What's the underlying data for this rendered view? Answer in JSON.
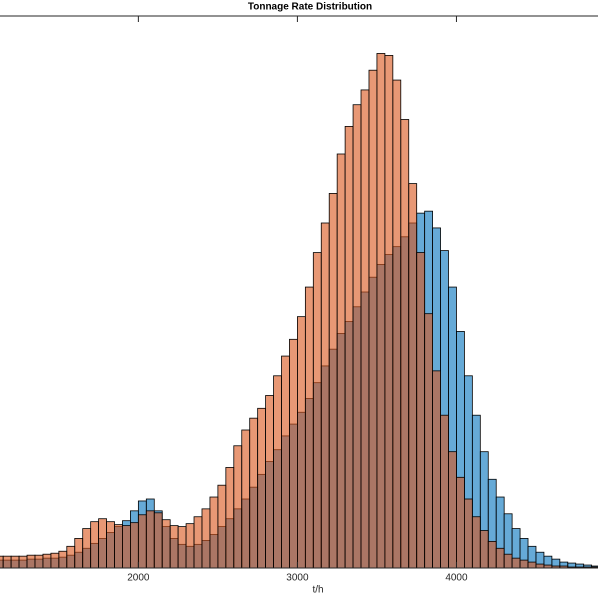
{
  "chart_data": {
    "type": "histogram",
    "title": "Tonnage Rate Distribution",
    "x_label": "t/h",
    "bins": [
      1100,
      1150,
      1200,
      1250,
      1300,
      1350,
      1400,
      1450,
      1500,
      1550,
      1600,
      1650,
      1700,
      1750,
      1800,
      1850,
      1900,
      1950,
      2000,
      2050,
      2100,
      2150,
      2200,
      2250,
      2300,
      2350,
      2400,
      2450,
      2500,
      2550,
      2600,
      2650,
      2700,
      2750,
      2800,
      2850,
      2900,
      2950,
      3000,
      3050,
      3100,
      3150,
      3200,
      3250,
      3300,
      3350,
      3400,
      3450,
      3500,
      3550,
      3600,
      3650,
      3700,
      3750,
      3800,
      3850,
      3900,
      3950,
      4000,
      4050,
      4100,
      4150,
      4200,
      4250,
      4300,
      4350,
      4400,
      4450,
      4500,
      4550,
      4600,
      4650,
      4700,
      4750,
      4800,
      4850,
      4900
    ],
    "series": [
      {
        "color": "#0072bd",
        "values": [
          8,
          8,
          8,
          8,
          9,
          9,
          10,
          10,
          11,
          13,
          16,
          20,
          25,
          30,
          36,
          42,
          48,
          58,
          68,
          70,
          58,
          42,
          30,
          24,
          22,
          24,
          28,
          34,
          42,
          50,
          60,
          70,
          82,
          95,
          108,
          120,
          134,
          146,
          158,
          172,
          188,
          205,
          222,
          238,
          250,
          265,
          280,
          295,
          308,
          318,
          326,
          336,
          350,
          360,
          362,
          345,
          322,
          285,
          240,
          195,
          155,
          118,
          90,
          72,
          55,
          40,
          30,
          22,
          16,
          12,
          9,
          6,
          5,
          4,
          3,
          2
        ]
      },
      {
        "color": "#d95319",
        "values": [
          12,
          12,
          12,
          12,
          13,
          13,
          14,
          15,
          17,
          22,
          30,
          40,
          47,
          50,
          47,
          44,
          43,
          46,
          54,
          58,
          56,
          49,
          43,
          42,
          45,
          52,
          60,
          72,
          84,
          102,
          124,
          140,
          152,
          162,
          175,
          195,
          215,
          232,
          255,
          285,
          320,
          350,
          380,
          420,
          448,
          470,
          485,
          505,
          522,
          520,
          495,
          455,
          390,
          320,
          258,
          200,
          155,
          118,
          92,
          70,
          52,
          38,
          27,
          20,
          14,
          10,
          8,
          6,
          4,
          3,
          2,
          2,
          1,
          1,
          1,
          1
        ]
      }
    ],
    "xlim": [
      1130,
      4890
    ],
    "ylim": [
      0,
      560
    ],
    "xticks": [
      2000,
      3000,
      4000
    ]
  }
}
